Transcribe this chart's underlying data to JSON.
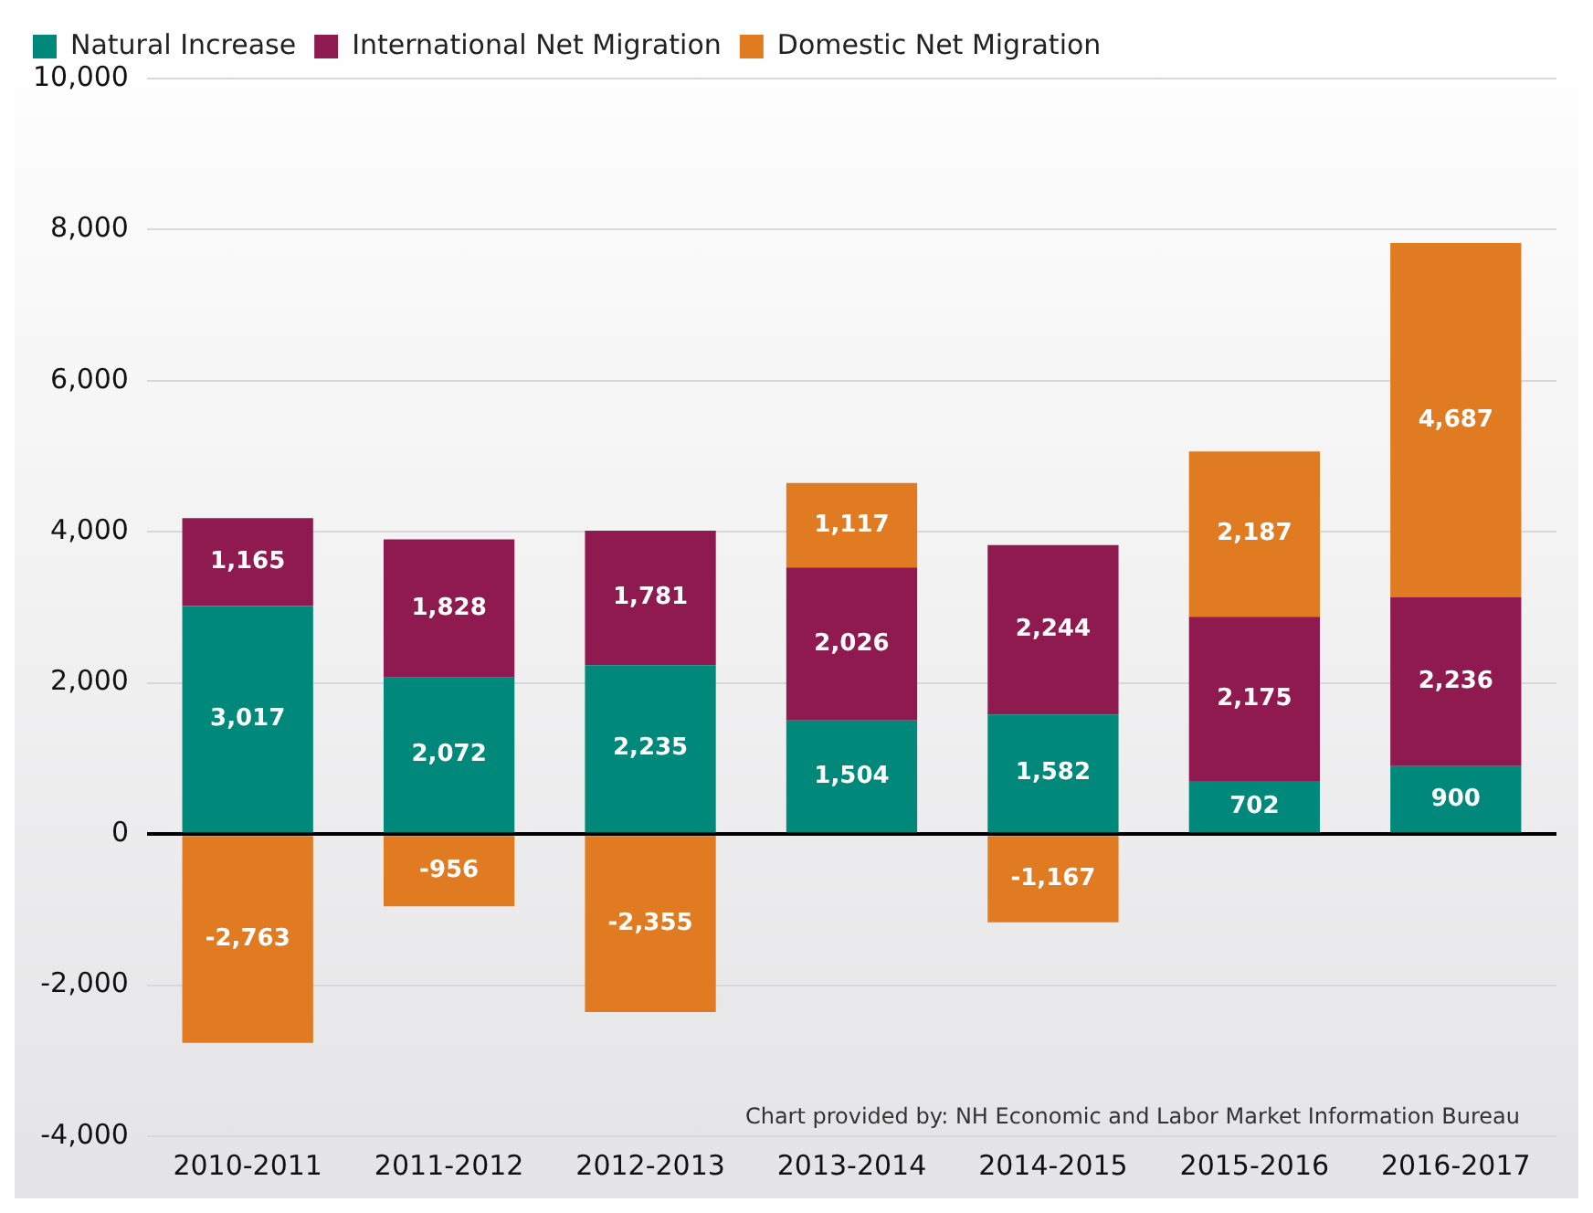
{
  "chart_data": {
    "type": "bar",
    "stacked": true,
    "categories": [
      "2010-2011",
      "2011-2012",
      "2012-2013",
      "2013-2014",
      "2014-2015",
      "2015-2016",
      "2016-2017"
    ],
    "series": [
      {
        "name": "Natural Increase",
        "color": "#00897b",
        "values": [
          3017,
          2072,
          2235,
          1504,
          1582,
          702,
          900
        ],
        "value_labels": [
          "3,017",
          "2,072",
          "2,235",
          "1,504",
          "1,582",
          "702",
          "900"
        ]
      },
      {
        "name": "International Net Migration",
        "color": "#8e1a4f",
        "values": [
          1165,
          1828,
          1781,
          2026,
          2244,
          2175,
          2236
        ],
        "value_labels": [
          "1,165",
          "1,828",
          "1,781",
          "2,026",
          "2,244",
          "2,175",
          "2,236"
        ]
      },
      {
        "name": "Domestic Net Migration",
        "color": "#e07b22",
        "values": [
          -2763,
          -956,
          -2355,
          1117,
          -1167,
          2187,
          4687
        ],
        "value_labels": [
          "-2,763",
          "-956",
          "-2,355",
          "1,117",
          "-1,167",
          "2,187",
          "4,687"
        ]
      }
    ],
    "ylim": [
      -4000,
      10000
    ],
    "yticks": [
      {
        "value": -4000,
        "label": "-4,000"
      },
      {
        "value": -2000,
        "label": "-2,000"
      },
      0,
      {
        "value": 2000,
        "label": "2,000"
      },
      {
        "value": 4000,
        "label": "4,000"
      },
      {
        "value": 6000,
        "label": "6,000"
      },
      {
        "value": 8000,
        "label": "8,000"
      },
      {
        "value": 10000,
        "label": "10,000"
      }
    ],
    "grid": "y",
    "legend": "top left",
    "annotations": [
      "Chart provided by: NH Economic and Labor Market Information Bureau"
    ]
  }
}
